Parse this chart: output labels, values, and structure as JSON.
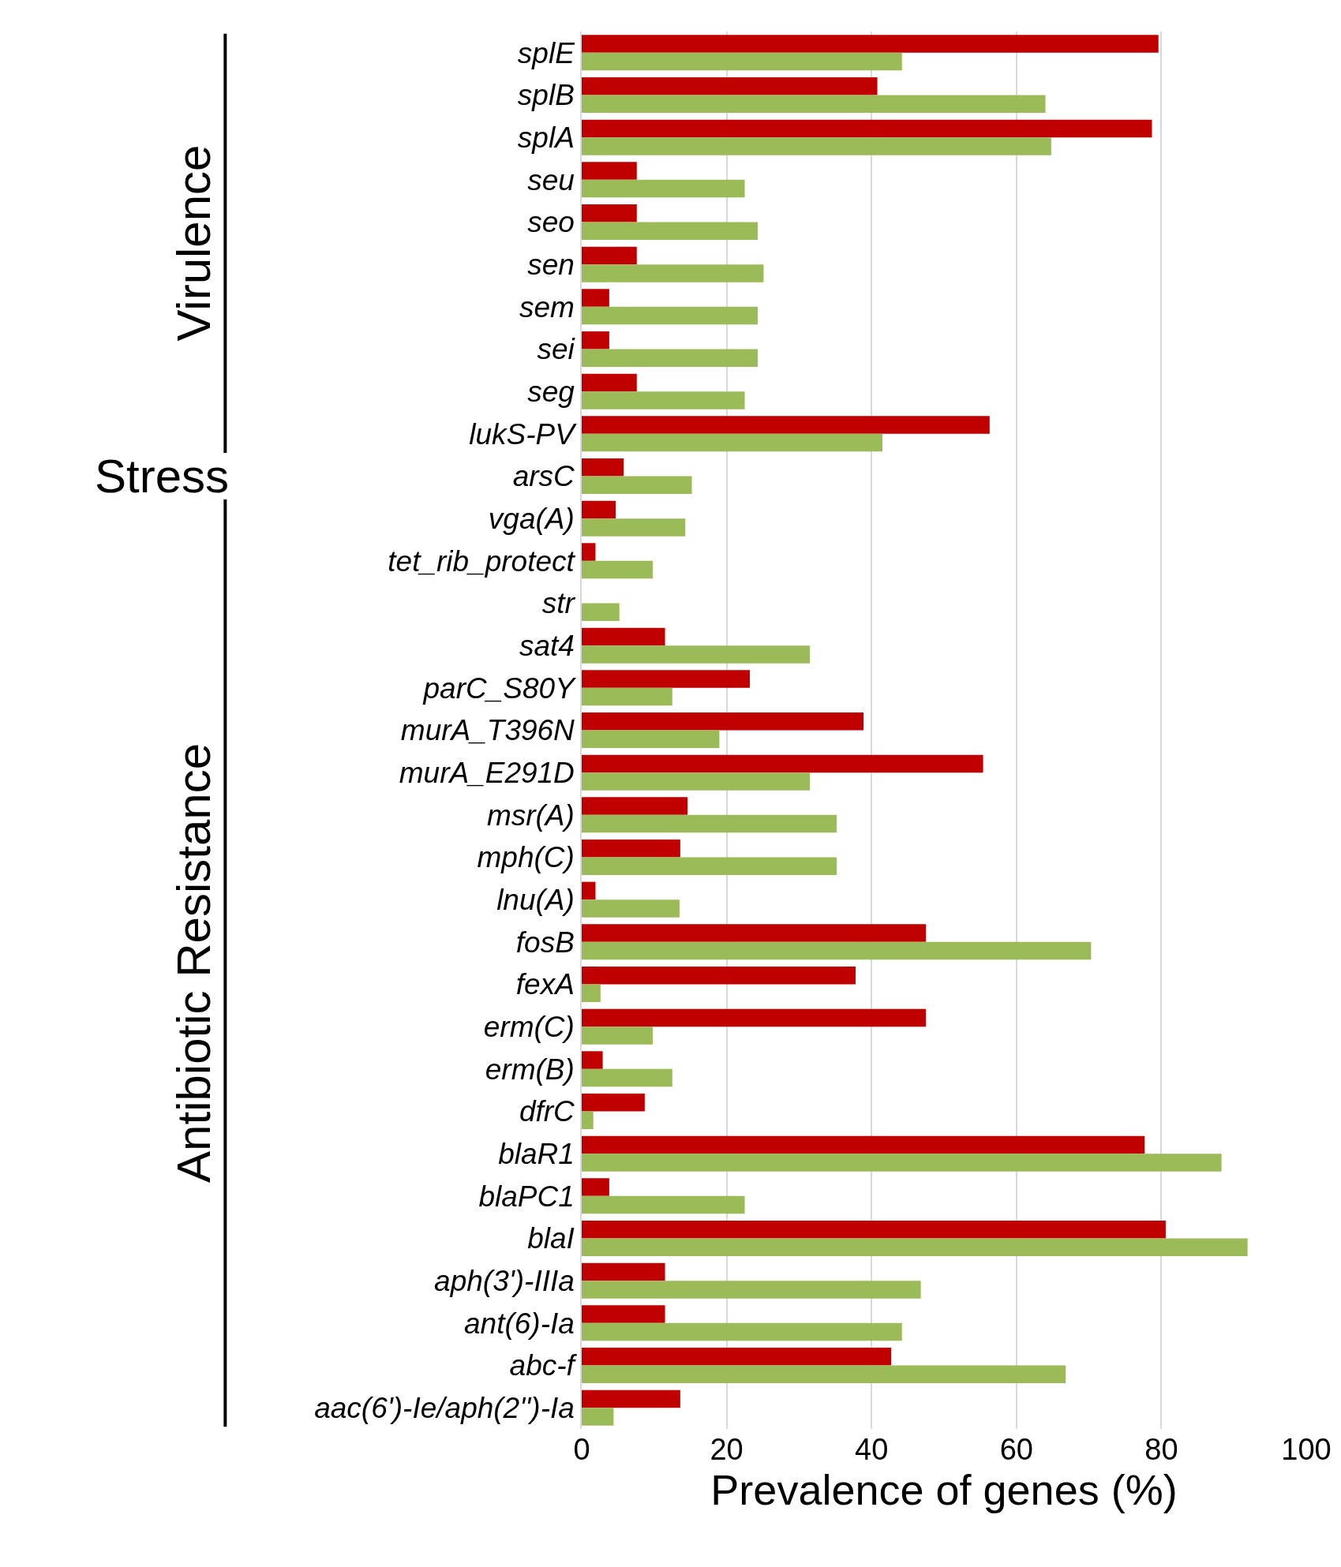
{
  "chart_data": {
    "type": "bar",
    "orientation": "horizontal",
    "categories": [
      "splE",
      "splB",
      "splA",
      "seu",
      "seo",
      "sen",
      "sem",
      "sei",
      "seg",
      "lukS-PV",
      "arsC",
      "vga(A)",
      "tet_rib_protect",
      "str",
      "sat4",
      "parC_S80Y",
      "murA_T396N",
      "murA_E291D",
      "msr(A)",
      "mph(C)",
      "lnu(A)",
      "fosB",
      "fexA",
      "erm(C)",
      "erm(B)",
      "dfrC",
      "blaR1",
      "blaPC1",
      "blaI",
      "aph(3')-IIIa",
      "ant(6)-Ia",
      "abc-f",
      "aac(6')-Ie/aph(2'')-Ia"
    ],
    "series": [
      {
        "color": "#c00000",
        "values": [
          79.6,
          40.8,
          78.7,
          7.6,
          7.6,
          7.6,
          3.8,
          3.8,
          7.6,
          56.3,
          5.8,
          4.7,
          1.9,
          0,
          11.5,
          23.2,
          38.9,
          55.4,
          14.6,
          13.6,
          1.9,
          47.5,
          37.8,
          47.5,
          2.9,
          8.7,
          77.7,
          3.8,
          80.6,
          11.5,
          11.5,
          42.7,
          13.6
        ]
      },
      {
        "color": "#9bbb59",
        "values": [
          44.2,
          64.0,
          64.8,
          22.5,
          24.3,
          25.1,
          24.3,
          24.3,
          22.5,
          41.5,
          15.2,
          14.3,
          9.8,
          5.2,
          31.5,
          12.5,
          19.0,
          31.5,
          35.2,
          35.2,
          13.5,
          70.3,
          2.6,
          9.8,
          12.5,
          1.6,
          88.3,
          22.5,
          91.9,
          46.8,
          44.2,
          66.8,
          4.4
        ]
      }
    ],
    "xlabel": "Prevalence of genes (%)",
    "xlim": [
      0,
      100
    ],
    "xticks": [
      0,
      20,
      40,
      60,
      80,
      100
    ],
    "grid": "x",
    "annotations": [
      "Virulence",
      "Stress",
      "Antibiotic Resistance"
    ]
  }
}
